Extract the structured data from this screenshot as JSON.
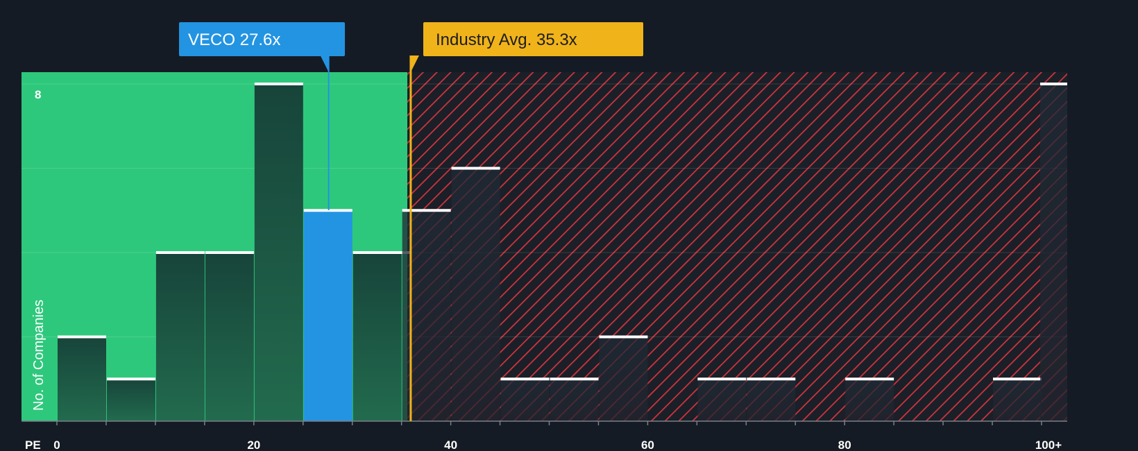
{
  "chart_data": {
    "type": "bar",
    "title": "",
    "xlabel": "PE",
    "ylabel": "No. of Companies",
    "xlim": [
      0,
      100
    ],
    "ylim": [
      0,
      8
    ],
    "x_tick_labels": [
      "0",
      "20",
      "40",
      "60",
      "80",
      "100+"
    ],
    "x_tick_values": [
      0,
      20,
      40,
      60,
      80,
      100
    ],
    "y_tick_labels": [
      "8"
    ],
    "y_tick_values": [
      8
    ],
    "bin_width": 5,
    "bins": [
      {
        "start": 0,
        "count": 2
      },
      {
        "start": 5,
        "count": 1
      },
      {
        "start": 10,
        "count": 4
      },
      {
        "start": 15,
        "count": 4
      },
      {
        "start": 20,
        "count": 8
      },
      {
        "start": 25,
        "count": 5,
        "highlight": true
      },
      {
        "start": 30,
        "count": 4
      },
      {
        "start": 35,
        "count": 5
      },
      {
        "start": 40,
        "count": 6
      },
      {
        "start": 45,
        "count": 1
      },
      {
        "start": 50,
        "count": 1
      },
      {
        "start": 55,
        "count": 2
      },
      {
        "start": 60,
        "count": 0
      },
      {
        "start": 65,
        "count": 1
      },
      {
        "start": 70,
        "count": 1
      },
      {
        "start": 75,
        "count": 0
      },
      {
        "start": 80,
        "count": 1
      },
      {
        "start": 85,
        "count": 0
      },
      {
        "start": 90,
        "count": 0
      },
      {
        "start": 95,
        "count": 1
      },
      {
        "start": 100,
        "count": 8
      }
    ],
    "company": {
      "label": "VECO 27.6x",
      "value": 27.6
    },
    "industry_avg": {
      "label": "Industry Avg. 35.3x",
      "value": 35.3
    },
    "colors": {
      "background": "#151b24",
      "fair_zone": "#2ec87c",
      "overvalued_zone": "#e0303c",
      "highlight_bar": "#2394e2",
      "company_callout": "#2394e2",
      "industry_callout": "#f0b31a"
    }
  }
}
